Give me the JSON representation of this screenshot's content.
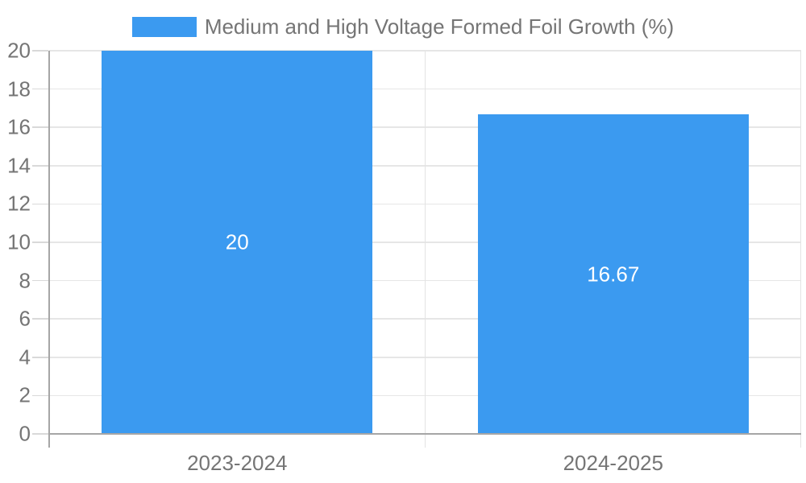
{
  "chart_data": {
    "type": "bar",
    "legend": "Medium and High Voltage Formed Foil Growth (%)",
    "legend_position": "top-center",
    "categories": [
      "2023-2024",
      "2024-2025"
    ],
    "series": [
      {
        "name": "Medium and High Voltage Formed Foil Growth (%)",
        "values": [
          20,
          16.67
        ],
        "value_labels": [
          "20",
          "16.67"
        ]
      }
    ],
    "xlabel": "",
    "ylabel": "",
    "ylim": [
      0,
      20
    ],
    "yticks": [
      0,
      2,
      4,
      6,
      8,
      10,
      12,
      14,
      16,
      18,
      20
    ],
    "grid": true,
    "colors": {
      "bar": "#3B9AF0",
      "bar_label": "#FFFFFF",
      "gridline": "#E6E6E6",
      "boundary_line": "#E3E3E3",
      "axis_line": "#A6A6A6",
      "tick": "#D9D9D9",
      "text": "#757575"
    }
  }
}
